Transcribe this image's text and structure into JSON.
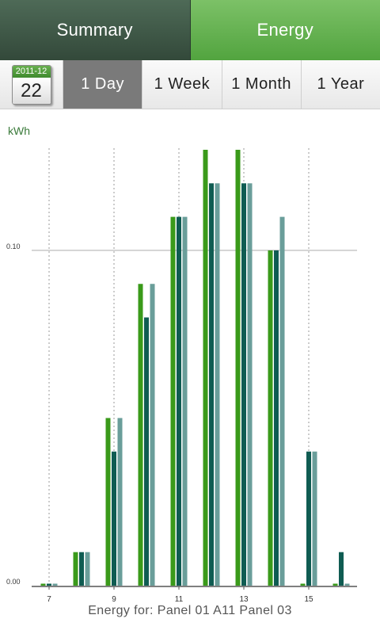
{
  "tabs": {
    "summary_label": "Summary",
    "energy_label": "Energy"
  },
  "calendar": {
    "month": "2011-12",
    "day": "22"
  },
  "periods": [
    "1 Day",
    "1 Week",
    "1 Month",
    "1 Year"
  ],
  "active_period": "1 Day",
  "chart_data": {
    "type": "bar",
    "ylabel": "kWh",
    "ylim": [
      0,
      0.13
    ],
    "y_ticks": [
      0.0,
      0.1
    ],
    "y_tick_labels": [
      "0.00",
      "0.10"
    ],
    "x_hours": [
      7,
      8,
      9,
      10,
      11,
      12,
      13,
      14,
      15,
      16
    ],
    "x_tick_labels": [
      "7",
      "9",
      "11",
      "13",
      "15"
    ],
    "series": [
      {
        "color": "#3a9a1a",
        "values": [
          0.0005,
          0.01,
          0.05,
          0.09,
          0.11,
          0.13,
          0.13,
          0.1,
          0.0005,
          0.0005
        ]
      },
      {
        "color": "#0f5c52",
        "values": [
          0.0005,
          0.01,
          0.04,
          0.08,
          0.11,
          0.12,
          0.12,
          0.1,
          0.04,
          0.01
        ]
      },
      {
        "color": "#6a9e9a",
        "values": [
          0.0005,
          0.01,
          0.05,
          0.09,
          0.11,
          0.12,
          0.12,
          0.11,
          0.04,
          0.0005
        ]
      }
    ],
    "grid": true
  },
  "footer": {
    "prefix": "Energy for:",
    "panels": "Panel 01 A11 Panel 03"
  }
}
